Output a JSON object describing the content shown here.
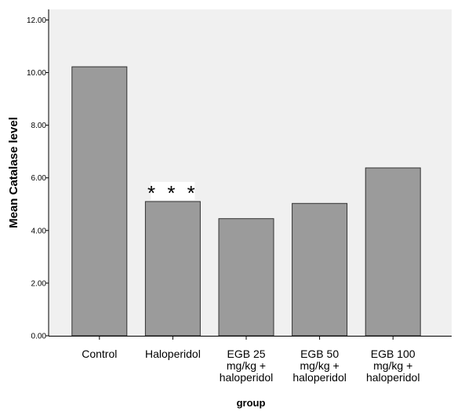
{
  "chart_data": {
    "type": "bar",
    "categories": [
      [
        "Control"
      ],
      [
        "Haloperidol"
      ],
      [
        "EGB 25",
        "mg/kg +",
        "haloperidol"
      ],
      [
        "EGB 50",
        "mg/kg +",
        "haloperidol"
      ],
      [
        "EGB 100",
        "mg/kg +",
        "haloperidol"
      ]
    ],
    "values": [
      10.22,
      5.1,
      4.45,
      5.03,
      6.38
    ],
    "ylim": [
      0,
      12.4
    ],
    "yticks": [
      "0.00",
      "2.00",
      "4.00",
      "6.00",
      "8.00",
      "10.00",
      "12.00"
    ],
    "xlabel": "group",
    "ylabel": "Mean Catalase level",
    "annotations": [
      {
        "category_index": 1,
        "text": "***"
      }
    ],
    "grid": false,
    "colors": {
      "plot_background": "#f0f0f0",
      "bar_fill": "#9b9b9b",
      "bar_stroke": "#333333",
      "axis": "#000000",
      "label_background": "#ffffff"
    }
  }
}
